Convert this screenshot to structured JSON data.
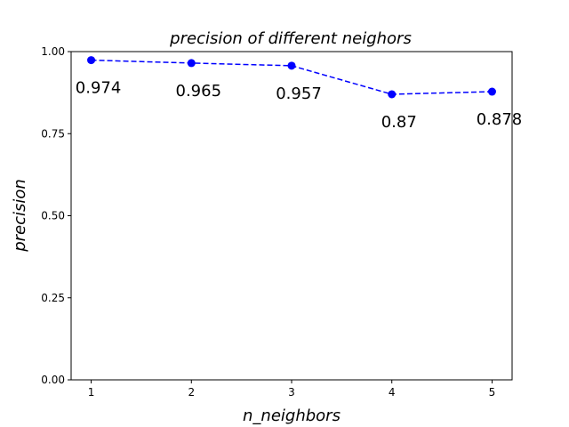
{
  "chart_data": {
    "type": "line",
    "title": "precision of different neighors",
    "xlabel": "n_neighbors",
    "ylabel": "precision",
    "x": [
      1,
      2,
      3,
      4,
      5
    ],
    "xlim": [
      0.8,
      5.2
    ],
    "ylim": [
      0.0,
      1.0
    ],
    "x_ticks": [
      "1",
      "2",
      "3",
      "4",
      "5"
    ],
    "y_ticks": [
      "0.00",
      "0.25",
      "0.50",
      "0.75",
      "1.00"
    ],
    "grid": false,
    "series": [
      {
        "name": "precision",
        "values": [
          0.974,
          0.965,
          0.957,
          0.87,
          0.878
        ],
        "line_style": "dashed",
        "marker": "circle",
        "color": "#0000ff"
      }
    ],
    "data_labels": [
      "0.974",
      "0.965",
      "0.957",
      "0.87",
      "0.878"
    ]
  }
}
